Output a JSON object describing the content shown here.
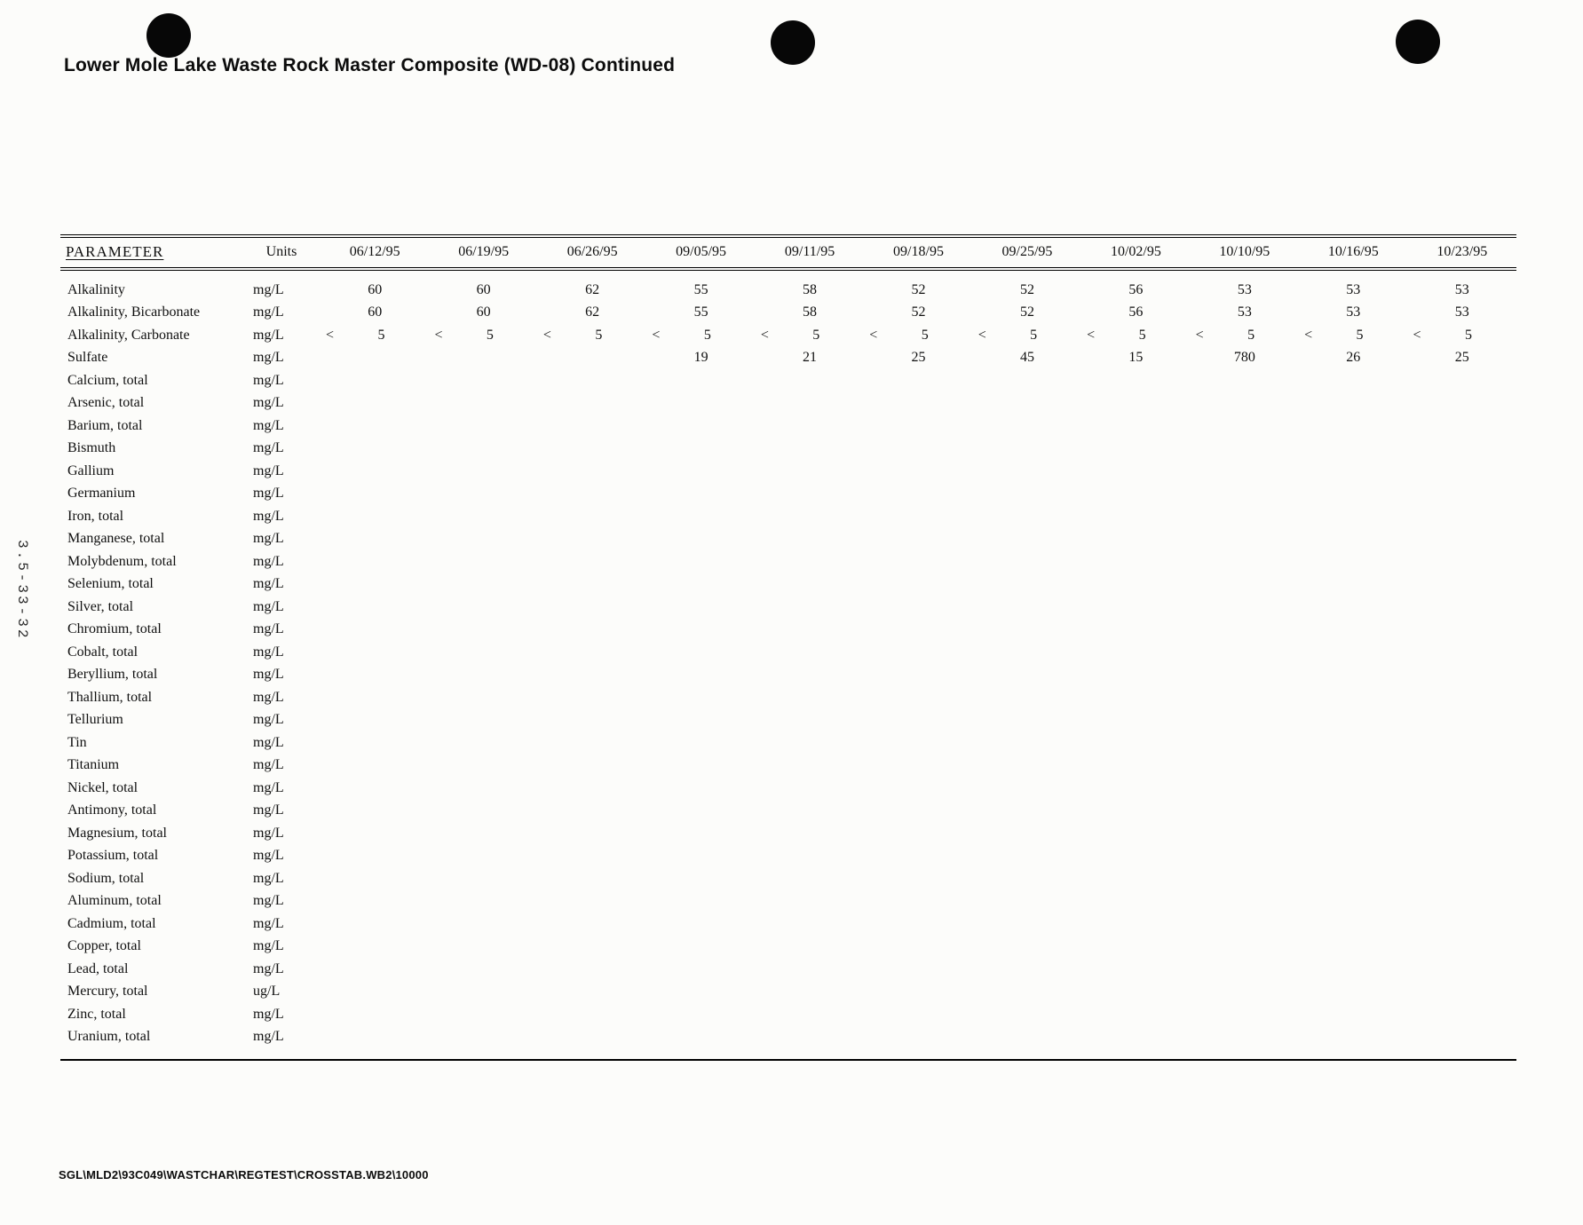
{
  "page": {
    "title": "Lower Mole Lake Waste Rock Master Composite (WD-08) Continued",
    "side_label": "3.5-33-32",
    "footer": "SGL\\MLD2\\93C049\\WASTCHAR\\REGTEST\\CROSSTAB.WB2\\10000"
  },
  "table": {
    "param_header": "PARAMETER",
    "units_header": "Units",
    "date_headers": [
      "06/12/95",
      "06/19/95",
      "06/26/95",
      "09/05/95",
      "09/11/95",
      "09/18/95",
      "09/25/95",
      "10/02/95",
      "10/10/95",
      "10/16/95",
      "10/23/95"
    ],
    "rows": [
      {
        "parameter": "Alkalinity",
        "units": "mg/L",
        "values": [
          "60",
          "60",
          "62",
          "55",
          "58",
          "52",
          "52",
          "56",
          "53",
          "53",
          "53"
        ]
      },
      {
        "parameter": "Alkalinity, Bicarbonate",
        "units": "mg/L",
        "values": [
          "60",
          "60",
          "62",
          "55",
          "58",
          "52",
          "52",
          "56",
          "53",
          "53",
          "53"
        ]
      },
      {
        "parameter": "Alkalinity, Carbonate",
        "units": "mg/L",
        "values": [
          "< 5",
          "< 5",
          "< 5",
          "< 5",
          "< 5",
          "< 5",
          "< 5",
          "< 5",
          "< 5",
          "< 5",
          "< 5"
        ]
      },
      {
        "parameter": "Sulfate",
        "units": "mg/L",
        "values": [
          "",
          "",
          "",
          "19",
          "21",
          "25",
          "45",
          "15",
          "780",
          "26",
          "25"
        ]
      },
      {
        "parameter": "Calcium, total",
        "units": "mg/L",
        "values": []
      },
      {
        "parameter": "Arsenic, total",
        "units": "mg/L",
        "values": []
      },
      {
        "parameter": "Barium, total",
        "units": "mg/L",
        "values": []
      },
      {
        "parameter": "Bismuth",
        "units": "mg/L",
        "values": []
      },
      {
        "parameter": "Gallium",
        "units": "mg/L",
        "values": []
      },
      {
        "parameter": "Germanium",
        "units": "mg/L",
        "values": []
      },
      {
        "parameter": "Iron, total",
        "units": "mg/L",
        "values": []
      },
      {
        "parameter": "Manganese, total",
        "units": "mg/L",
        "values": []
      },
      {
        "parameter": "Molybdenum, total",
        "units": "mg/L",
        "values": []
      },
      {
        "parameter": "Selenium, total",
        "units": "mg/L",
        "values": []
      },
      {
        "parameter": "Silver, total",
        "units": "mg/L",
        "values": []
      },
      {
        "parameter": "Chromium, total",
        "units": "mg/L",
        "values": []
      },
      {
        "parameter": "Cobalt, total",
        "units": "mg/L",
        "values": []
      },
      {
        "parameter": "Beryllium, total",
        "units": "mg/L",
        "values": []
      },
      {
        "parameter": "Thallium, total",
        "units": "mg/L",
        "values": []
      },
      {
        "parameter": "Tellurium",
        "units": "mg/L",
        "values": []
      },
      {
        "parameter": "Tin",
        "units": "mg/L",
        "values": []
      },
      {
        "parameter": "Titanium",
        "units": "mg/L",
        "values": []
      },
      {
        "parameter": "Nickel, total",
        "units": "mg/L",
        "values": []
      },
      {
        "parameter": "Antimony, total",
        "units": "mg/L",
        "values": []
      },
      {
        "parameter": "Magnesium, total",
        "units": "mg/L",
        "values": []
      },
      {
        "parameter": "Potassium, total",
        "units": "mg/L",
        "values": []
      },
      {
        "parameter": "Sodium, total",
        "units": "mg/L",
        "values": []
      },
      {
        "parameter": "Aluminum, total",
        "units": "mg/L",
        "values": []
      },
      {
        "parameter": "Cadmium, total",
        "units": "mg/L",
        "values": []
      },
      {
        "parameter": "Copper, total",
        "units": "mg/L",
        "values": []
      },
      {
        "parameter": "Lead, total",
        "units": "mg/L",
        "values": []
      },
      {
        "parameter": "Mercury, total",
        "units": "ug/L",
        "values": []
      },
      {
        "parameter": "Zinc, total",
        "units": "mg/L",
        "values": []
      },
      {
        "parameter": "Uranium, total",
        "units": "mg/L",
        "values": []
      }
    ]
  }
}
